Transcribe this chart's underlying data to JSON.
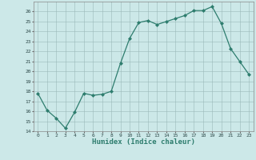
{
  "x": [
    0,
    1,
    2,
    3,
    4,
    5,
    6,
    7,
    8,
    9,
    10,
    11,
    12,
    13,
    14,
    15,
    16,
    17,
    18,
    19,
    20,
    21,
    22,
    23
  ],
  "y": [
    17.8,
    16.1,
    15.3,
    14.3,
    15.9,
    17.8,
    17.6,
    17.7,
    18.0,
    20.8,
    23.3,
    24.9,
    25.1,
    24.7,
    25.0,
    25.3,
    25.6,
    26.1,
    26.1,
    26.5,
    24.8,
    22.3,
    21.0,
    19.7
  ],
  "xlabel": "Humidex (Indice chaleur)",
  "ylim": [
    14,
    27
  ],
  "xlim": [
    -0.5,
    23.5
  ],
  "yticks": [
    14,
    15,
    16,
    17,
    18,
    19,
    20,
    21,
    22,
    23,
    24,
    25,
    26
  ],
  "xticks": [
    0,
    1,
    2,
    3,
    4,
    5,
    6,
    7,
    8,
    9,
    10,
    11,
    12,
    13,
    14,
    15,
    16,
    17,
    18,
    19,
    20,
    21,
    22,
    23
  ],
  "line_color": "#2e7d6e",
  "marker_color": "#2e7d6e",
  "bg_color": "#cce8e8",
  "grid_color": "#b0cccc",
  "grid_color_major": "#9ab8b8",
  "xlabel_color": "#2e7d6e"
}
